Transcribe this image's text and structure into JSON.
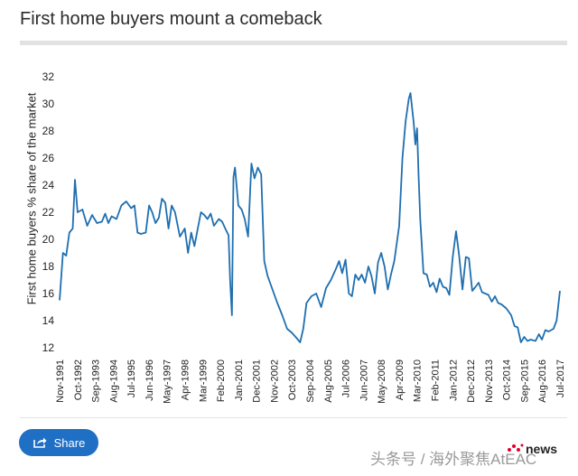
{
  "header": {
    "title": "First home buyers mount a comeback"
  },
  "share": {
    "label": "Share",
    "icon": "share-icon"
  },
  "watermark": {
    "text": "头条号 / 海外聚焦AtEAC",
    "brand": "news"
  },
  "chart_data": {
    "type": "line",
    "title": "First home buyers mount a comeback",
    "xlabel": "",
    "ylabel": "First home buyers % share of the market",
    "ylim": [
      12,
      32
    ],
    "yticks": [
      12,
      14,
      16,
      18,
      20,
      22,
      24,
      26,
      28,
      30,
      32
    ],
    "grid": false,
    "legend": "none",
    "line_color": "#1f6fb0",
    "xticks": [
      "Nov-1991",
      "Oct-1992",
      "Sep-1993",
      "Aug-1994",
      "Jul-1995",
      "Jun-1996",
      "May-1997",
      "Apr-1998",
      "Mar-1999",
      "Feb-2000",
      "Jan-2001",
      "Dec-2001",
      "Nov-2002",
      "Oct-2003",
      "Sep-2004",
      "Aug-2005",
      "Jul-2006",
      "Jun-2007",
      "May-2008",
      "Apr-2009",
      "Mar-2010",
      "Feb-2011",
      "Jan-2012",
      "Dec-2012",
      "Nov-2013",
      "Oct-2014",
      "Sep-2015",
      "Aug-2016",
      "Jul-2017"
    ],
    "series": [
      {
        "values": [
          [
            1991.83,
            15.5
          ],
          [
            1992.0,
            19.0
          ],
          [
            1992.17,
            18.8
          ],
          [
            1992.33,
            20.5
          ],
          [
            1992.5,
            20.8
          ],
          [
            1992.62,
            24.4
          ],
          [
            1992.75,
            22.0
          ],
          [
            1993.0,
            22.2
          ],
          [
            1993.25,
            21.0
          ],
          [
            1993.5,
            21.8
          ],
          [
            1993.75,
            21.2
          ],
          [
            1994.0,
            21.3
          ],
          [
            1994.17,
            21.9
          ],
          [
            1994.33,
            21.2
          ],
          [
            1994.5,
            21.7
          ],
          [
            1994.75,
            21.5
          ],
          [
            1995.0,
            22.5
          ],
          [
            1995.25,
            22.8
          ],
          [
            1995.5,
            22.3
          ],
          [
            1995.67,
            22.5
          ],
          [
            1995.83,
            20.5
          ],
          [
            1996.0,
            20.4
          ],
          [
            1996.25,
            20.5
          ],
          [
            1996.42,
            22.5
          ],
          [
            1996.58,
            22.0
          ],
          [
            1996.75,
            21.2
          ],
          [
            1996.92,
            21.6
          ],
          [
            1997.08,
            23.0
          ],
          [
            1997.25,
            22.7
          ],
          [
            1997.42,
            20.8
          ],
          [
            1997.58,
            22.5
          ],
          [
            1997.75,
            22.0
          ],
          [
            1998.0,
            20.2
          ],
          [
            1998.25,
            20.8
          ],
          [
            1998.42,
            19.0
          ],
          [
            1998.58,
            20.5
          ],
          [
            1998.75,
            19.5
          ],
          [
            1998.92,
            20.8
          ],
          [
            1999.08,
            22.0
          ],
          [
            1999.25,
            21.8
          ],
          [
            1999.42,
            21.5
          ],
          [
            1999.58,
            21.9
          ],
          [
            1999.75,
            21.0
          ],
          [
            2000.0,
            21.5
          ],
          [
            2000.17,
            21.3
          ],
          [
            2000.33,
            20.8
          ],
          [
            2000.5,
            20.3
          ],
          [
            2000.58,
            17.0
          ],
          [
            2000.67,
            14.4
          ],
          [
            2000.75,
            24.6
          ],
          [
            2000.83,
            25.3
          ],
          [
            2001.0,
            22.5
          ],
          [
            2001.17,
            22.2
          ],
          [
            2001.33,
            21.5
          ],
          [
            2001.5,
            20.2
          ],
          [
            2001.67,
            25.6
          ],
          [
            2001.83,
            24.5
          ],
          [
            2002.0,
            25.3
          ],
          [
            2002.17,
            24.8
          ],
          [
            2002.33,
            18.4
          ],
          [
            2002.5,
            17.3
          ],
          [
            2002.75,
            16.3
          ],
          [
            2003.0,
            15.3
          ],
          [
            2003.25,
            14.4
          ],
          [
            2003.5,
            13.4
          ],
          [
            2003.75,
            13.1
          ],
          [
            2004.0,
            12.7
          ],
          [
            2004.17,
            12.4
          ],
          [
            2004.33,
            13.4
          ],
          [
            2004.5,
            15.3
          ],
          [
            2004.75,
            15.8
          ],
          [
            2005.0,
            16.0
          ],
          [
            2005.25,
            15.0
          ],
          [
            2005.5,
            16.4
          ],
          [
            2005.75,
            17.0
          ],
          [
            2006.0,
            17.8
          ],
          [
            2006.17,
            18.4
          ],
          [
            2006.33,
            17.5
          ],
          [
            2006.5,
            18.5
          ],
          [
            2006.67,
            16.0
          ],
          [
            2006.83,
            15.8
          ],
          [
            2007.0,
            17.4
          ],
          [
            2007.17,
            17.0
          ],
          [
            2007.33,
            17.4
          ],
          [
            2007.5,
            16.8
          ],
          [
            2007.67,
            18.0
          ],
          [
            2007.83,
            17.3
          ],
          [
            2008.0,
            16.0
          ],
          [
            2008.17,
            18.3
          ],
          [
            2008.33,
            19.0
          ],
          [
            2008.5,
            18.0
          ],
          [
            2008.67,
            16.3
          ],
          [
            2008.83,
            17.4
          ],
          [
            2009.0,
            18.4
          ],
          [
            2009.25,
            21.0
          ],
          [
            2009.42,
            26.0
          ],
          [
            2009.58,
            28.7
          ],
          [
            2009.75,
            30.4
          ],
          [
            2009.83,
            30.8
          ],
          [
            2010.0,
            28.6
          ],
          [
            2010.08,
            27.0
          ],
          [
            2010.17,
            28.2
          ],
          [
            2010.25,
            24.7
          ],
          [
            2010.33,
            21.5
          ],
          [
            2010.5,
            17.5
          ],
          [
            2010.67,
            17.4
          ],
          [
            2010.83,
            16.5
          ],
          [
            2011.0,
            16.8
          ],
          [
            2011.17,
            16.1
          ],
          [
            2011.33,
            17.1
          ],
          [
            2011.5,
            16.5
          ],
          [
            2011.67,
            16.4
          ],
          [
            2011.83,
            15.9
          ],
          [
            2012.0,
            18.7
          ],
          [
            2012.17,
            20.6
          ],
          [
            2012.33,
            18.8
          ],
          [
            2012.5,
            16.3
          ],
          [
            2012.67,
            18.7
          ],
          [
            2012.83,
            18.6
          ],
          [
            2013.0,
            16.2
          ],
          [
            2013.17,
            16.5
          ],
          [
            2013.33,
            16.8
          ],
          [
            2013.5,
            16.1
          ],
          [
            2013.67,
            16.0
          ],
          [
            2013.83,
            15.9
          ],
          [
            2014.0,
            15.4
          ],
          [
            2014.17,
            15.8
          ],
          [
            2014.33,
            15.3
          ],
          [
            2014.5,
            15.2
          ],
          [
            2014.75,
            14.9
          ],
          [
            2015.0,
            14.4
          ],
          [
            2015.17,
            13.6
          ],
          [
            2015.33,
            13.5
          ],
          [
            2015.5,
            12.4
          ],
          [
            2015.67,
            12.8
          ],
          [
            2015.83,
            12.5
          ],
          [
            2016.0,
            12.6
          ],
          [
            2016.25,
            12.5
          ],
          [
            2016.42,
            13.0
          ],
          [
            2016.58,
            12.6
          ],
          [
            2016.75,
            13.3
          ],
          [
            2016.92,
            13.2
          ],
          [
            2017.17,
            13.4
          ],
          [
            2017.33,
            14.0
          ],
          [
            2017.5,
            16.2
          ]
        ]
      }
    ]
  }
}
